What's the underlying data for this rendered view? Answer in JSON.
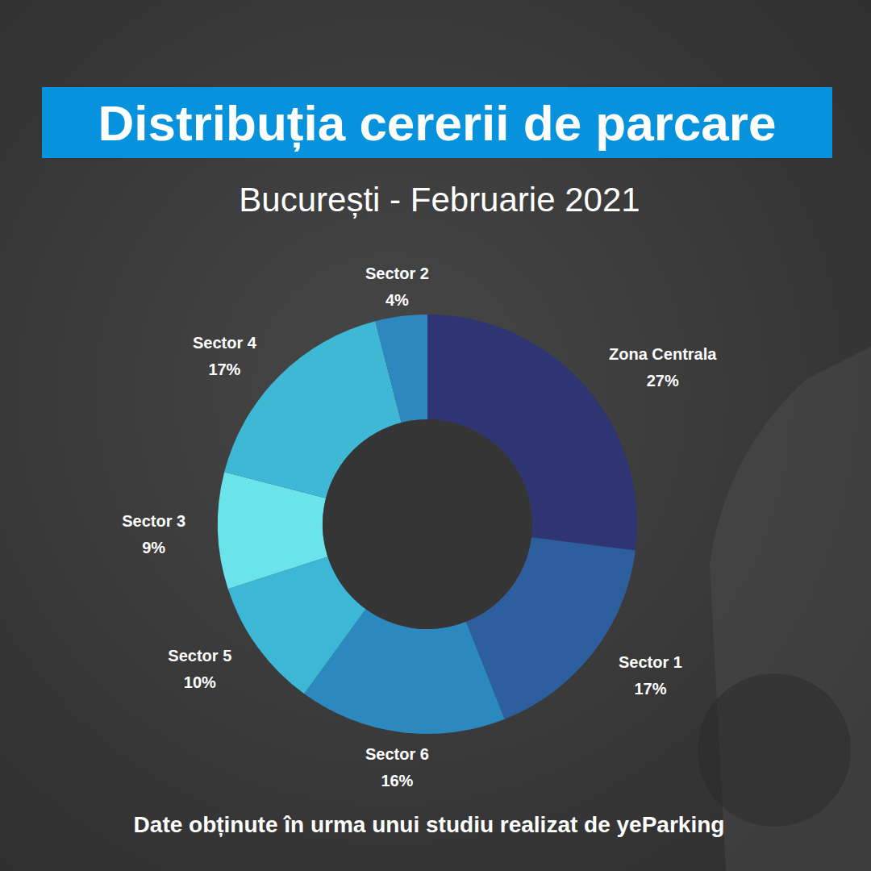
{
  "chart_data": {
    "type": "donut",
    "title": "Distribuția cererii de parcare",
    "subtitle": "București - Februarie 2021",
    "source": "Date obținute în urma unui studiu realizat de yeParking",
    "categories": [
      "Zona Centrala",
      "Sector 1",
      "Sector 6",
      "Sector 5",
      "Sector 3",
      "Sector 4",
      "Sector 2"
    ],
    "values": [
      27,
      17,
      16,
      10,
      9,
      17,
      4
    ],
    "value_labels": [
      "27%",
      "17%",
      "16%",
      "10%",
      "9%",
      "17%",
      "4%"
    ],
    "colors": [
      "#2f3573",
      "#2d5e9d",
      "#2c89c0",
      "#3cb7d6",
      "#6be3ea",
      "#3fb8d6",
      "#2e88bf"
    ],
    "data_labels": true
  }
}
